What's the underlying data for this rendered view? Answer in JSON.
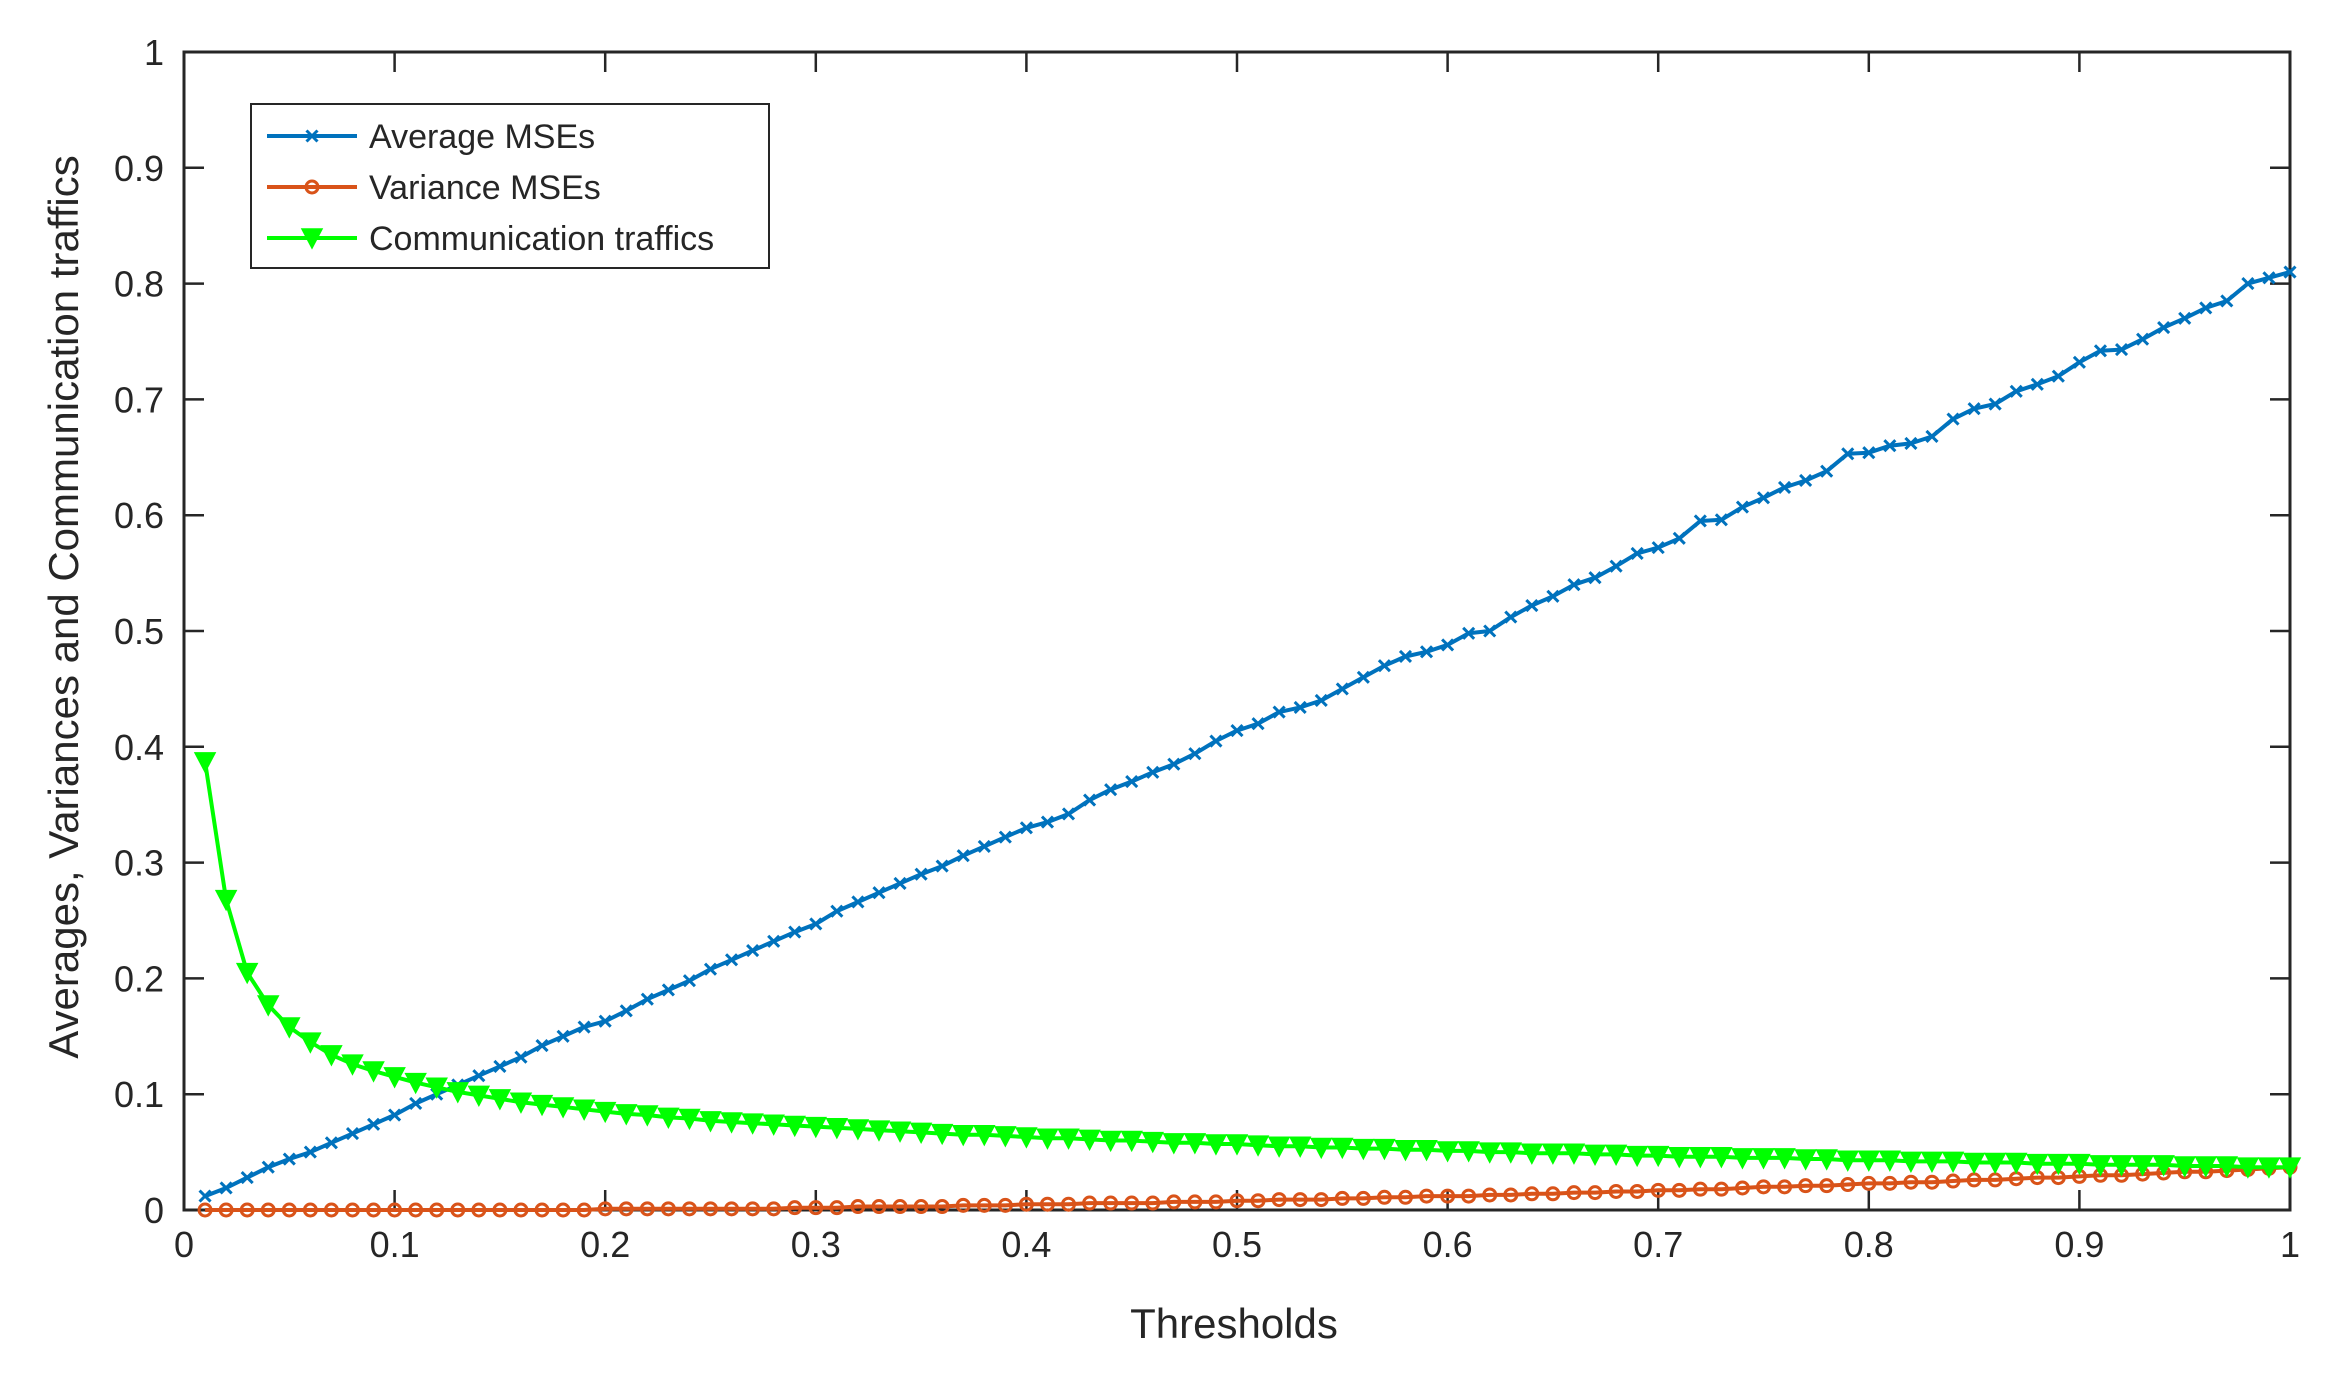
{
  "chart_data": {
    "type": "line",
    "title": "",
    "xlabel": "Thresholds",
    "ylabel": "Averages, Variances and Communication traffics",
    "xlim": [
      0,
      1
    ],
    "ylim": [
      0,
      1
    ],
    "x_ticks": [
      "0",
      "0.1",
      "0.2",
      "0.3",
      "0.4",
      "0.5",
      "0.6",
      "0.7",
      "0.8",
      "0.9",
      "1"
    ],
    "y_ticks": [
      "0",
      "0.1",
      "0.2",
      "0.3",
      "0.4",
      "0.5",
      "0.6",
      "0.7",
      "0.8",
      "0.9",
      "1"
    ],
    "grid": false,
    "legend_position": "top-left",
    "x": [
      0.01,
      0.02,
      0.03,
      0.04,
      0.05,
      0.06,
      0.07,
      0.08,
      0.09,
      0.1,
      0.11,
      0.12,
      0.13,
      0.14,
      0.15,
      0.16,
      0.17,
      0.18,
      0.19,
      0.2,
      0.21,
      0.22,
      0.23,
      0.24,
      0.25,
      0.26,
      0.27,
      0.28,
      0.29,
      0.3,
      0.31,
      0.32,
      0.33,
      0.34,
      0.35,
      0.36,
      0.37,
      0.38,
      0.39,
      0.4,
      0.41,
      0.42,
      0.43,
      0.44,
      0.45,
      0.46,
      0.47,
      0.48,
      0.49,
      0.5,
      0.51,
      0.52,
      0.53,
      0.54,
      0.55,
      0.56,
      0.57,
      0.58,
      0.59,
      0.6,
      0.61,
      0.62,
      0.63,
      0.64,
      0.65,
      0.66,
      0.67,
      0.68,
      0.69,
      0.7,
      0.71,
      0.72,
      0.73,
      0.74,
      0.75,
      0.76,
      0.77,
      0.78,
      0.79,
      0.8,
      0.81,
      0.82,
      0.83,
      0.84,
      0.85,
      0.86,
      0.87,
      0.88,
      0.89,
      0.9,
      0.91,
      0.92,
      0.93,
      0.94,
      0.95,
      0.96,
      0.97,
      0.98,
      0.99,
      1.0
    ],
    "series": [
      {
        "name": "Average MSEs",
        "color": "#0072BD",
        "marker": "x",
        "values": [
          0.012,
          0.019,
          0.028,
          0.037,
          0.044,
          0.05,
          0.058,
          0.066,
          0.074,
          0.082,
          0.092,
          0.1,
          0.108,
          0.116,
          0.124,
          0.132,
          0.142,
          0.15,
          0.158,
          0.163,
          0.172,
          0.182,
          0.19,
          0.198,
          0.208,
          0.216,
          0.224,
          0.232,
          0.24,
          0.247,
          0.258,
          0.266,
          0.274,
          0.282,
          0.29,
          0.297,
          0.306,
          0.314,
          0.322,
          0.33,
          0.335,
          0.342,
          0.354,
          0.363,
          0.37,
          0.378,
          0.385,
          0.394,
          0.405,
          0.414,
          0.42,
          0.43,
          0.434,
          0.44,
          0.45,
          0.46,
          0.47,
          0.478,
          0.482,
          0.488,
          0.498,
          0.5,
          0.512,
          0.522,
          0.53,
          0.54,
          0.546,
          0.556,
          0.567,
          0.572,
          0.58,
          0.595,
          0.596,
          0.607,
          0.615,
          0.624,
          0.63,
          0.638,
          0.653,
          0.654,
          0.66,
          0.662,
          0.668,
          0.683,
          0.692,
          0.696,
          0.707,
          0.713,
          0.72,
          0.732,
          0.742,
          0.743,
          0.752,
          0.762,
          0.77,
          0.779,
          0.785,
          0.8,
          0.805,
          0.81
        ]
      },
      {
        "name": "Variance MSEs",
        "color": "#D95319",
        "marker": "o",
        "values": [
          0.0,
          0.0,
          0.0,
          0.0,
          0.0,
          0.0,
          0.0,
          0.0,
          0.0,
          0.0,
          0.0,
          0.0,
          0.0,
          0.0,
          0.0,
          0.0,
          0.0,
          0.0,
          0.0,
          0.001,
          0.001,
          0.001,
          0.001,
          0.001,
          0.001,
          0.001,
          0.001,
          0.001,
          0.002,
          0.002,
          0.002,
          0.003,
          0.003,
          0.003,
          0.003,
          0.003,
          0.004,
          0.004,
          0.004,
          0.005,
          0.005,
          0.005,
          0.006,
          0.006,
          0.006,
          0.006,
          0.007,
          0.007,
          0.007,
          0.008,
          0.008,
          0.009,
          0.009,
          0.009,
          0.01,
          0.01,
          0.011,
          0.011,
          0.012,
          0.012,
          0.012,
          0.013,
          0.013,
          0.014,
          0.014,
          0.015,
          0.015,
          0.016,
          0.016,
          0.017,
          0.017,
          0.018,
          0.018,
          0.019,
          0.02,
          0.02,
          0.021,
          0.021,
          0.022,
          0.023,
          0.023,
          0.024,
          0.024,
          0.025,
          0.026,
          0.026,
          0.027,
          0.028,
          0.028,
          0.029,
          0.03,
          0.03,
          0.031,
          0.032,
          0.033,
          0.033,
          0.034,
          0.035,
          0.036,
          0.037
        ]
      },
      {
        "name": "Communication traffics",
        "color": "#00FF00",
        "marker": "v",
        "values": [
          0.387,
          0.268,
          0.205,
          0.177,
          0.158,
          0.145,
          0.134,
          0.126,
          0.12,
          0.115,
          0.11,
          0.106,
          0.102,
          0.099,
          0.096,
          0.093,
          0.091,
          0.089,
          0.087,
          0.085,
          0.083,
          0.082,
          0.08,
          0.079,
          0.077,
          0.076,
          0.075,
          0.074,
          0.073,
          0.072,
          0.071,
          0.07,
          0.069,
          0.068,
          0.067,
          0.066,
          0.065,
          0.065,
          0.064,
          0.063,
          0.062,
          0.062,
          0.061,
          0.06,
          0.06,
          0.059,
          0.058,
          0.058,
          0.057,
          0.057,
          0.056,
          0.055,
          0.055,
          0.054,
          0.054,
          0.053,
          0.053,
          0.052,
          0.052,
          0.051,
          0.051,
          0.05,
          0.05,
          0.049,
          0.049,
          0.049,
          0.048,
          0.048,
          0.047,
          0.047,
          0.046,
          0.046,
          0.046,
          0.045,
          0.045,
          0.045,
          0.044,
          0.044,
          0.043,
          0.043,
          0.043,
          0.042,
          0.042,
          0.042,
          0.041,
          0.041,
          0.041,
          0.04,
          0.04,
          0.04,
          0.039,
          0.039,
          0.039,
          0.039,
          0.038,
          0.038,
          0.038,
          0.037,
          0.037,
          0.037
        ]
      }
    ]
  }
}
